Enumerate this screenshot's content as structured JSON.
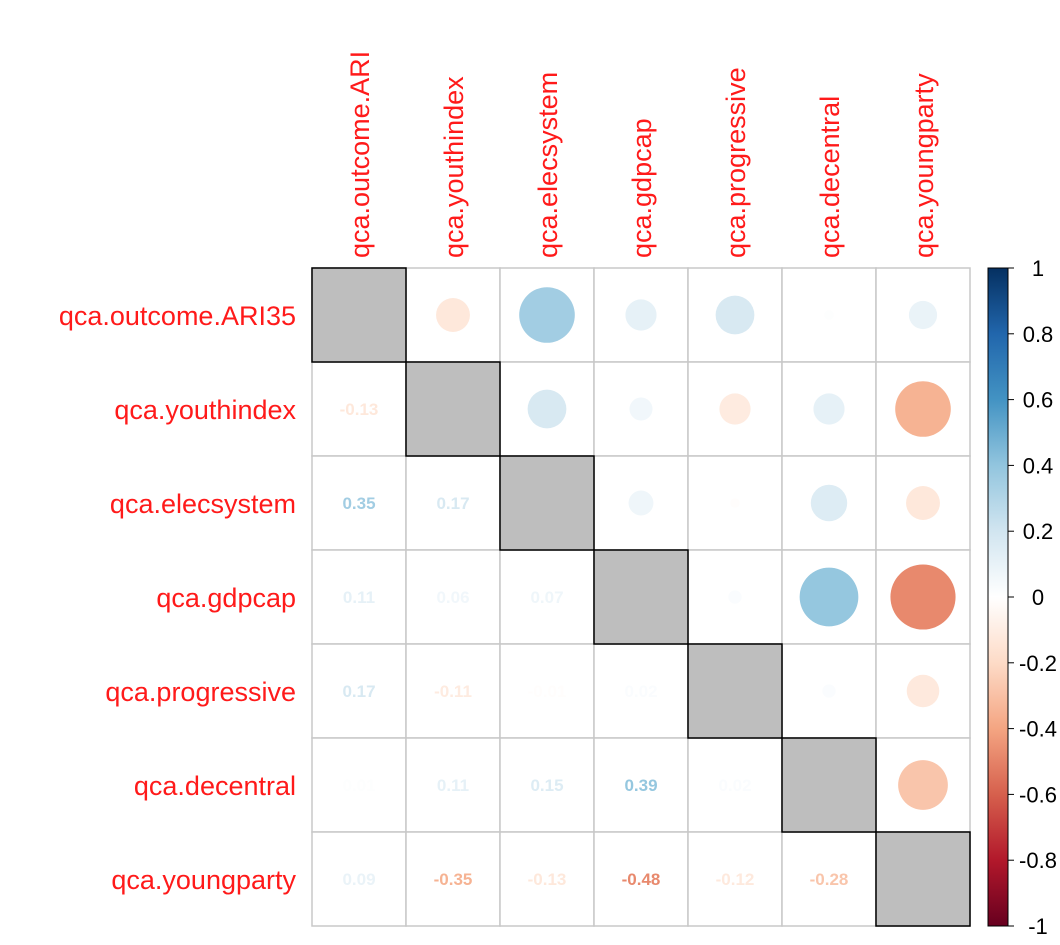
{
  "chart_data": {
    "type": "heatmap",
    "subtype": "correlation-mixed",
    "upper_method": "circle",
    "lower_method": "number",
    "diagonal": "grey",
    "variables": [
      "qca.outcome.ARI35",
      "qca.youthindex",
      "qca.elecsystem",
      "qca.gdpcap",
      "qca.progressive",
      "qca.decentral",
      "qca.youngparty"
    ],
    "column_labels": [
      "qca.outcome.ARI",
      "qca.youthindex",
      "qca.elecsystem",
      "qca.gdpcap",
      "qca.progressive",
      "qca.decentral",
      "qca.youngparty"
    ],
    "matrix": [
      [
        1,
        -0.13,
        0.35,
        0.11,
        0.17,
        0.01,
        0.09
      ],
      [
        -0.13,
        1,
        0.17,
        0.06,
        -0.11,
        0.11,
        -0.35
      ],
      [
        0.35,
        0.17,
        1,
        0.07,
        -0.01,
        0.15,
        -0.13
      ],
      [
        0.11,
        0.06,
        0.07,
        1,
        0.02,
        0.39,
        -0.48
      ],
      [
        0.17,
        -0.11,
        -0.01,
        0.02,
        1,
        0.02,
        -0.12
      ],
      [
        0.01,
        0.11,
        0.15,
        0.39,
        0.02,
        1,
        -0.28
      ],
      [
        0.09,
        -0.35,
        -0.13,
        -0.48,
        -0.12,
        -0.28,
        1
      ]
    ],
    "lower_labels": [
      [],
      [
        "-0.13"
      ],
      [
        "0.35",
        "0.17"
      ],
      [
        "0.11",
        "0.06",
        "0.07"
      ],
      [
        "0.17",
        "-0.11",
        "-0.01",
        "0.02"
      ],
      [
        "0.01",
        "0.11",
        "0.15",
        "0.39",
        "0.02"
      ],
      [
        "0.09",
        "-0.35",
        "-0.13",
        "-0.48",
        "-0.12",
        "-0.28"
      ]
    ],
    "colorbar": {
      "range": [
        -1,
        1
      ],
      "ticks": [
        "1",
        "0.8",
        "0.6",
        "0.4",
        "0.2",
        "0",
        "-0.2",
        "-0.4",
        "-0.6",
        "-0.8",
        "-1"
      ],
      "colors": [
        "#67001f",
        "#b2182b",
        "#d6604d",
        "#f4a582",
        "#fddbc7",
        "#ffffff",
        "#d1e5f0",
        "#92c5de",
        "#4393c3",
        "#2166ac",
        "#053061"
      ]
    },
    "label_color": "#ff1a1a",
    "diagonal_color": "#bebebe",
    "legend": "right"
  }
}
